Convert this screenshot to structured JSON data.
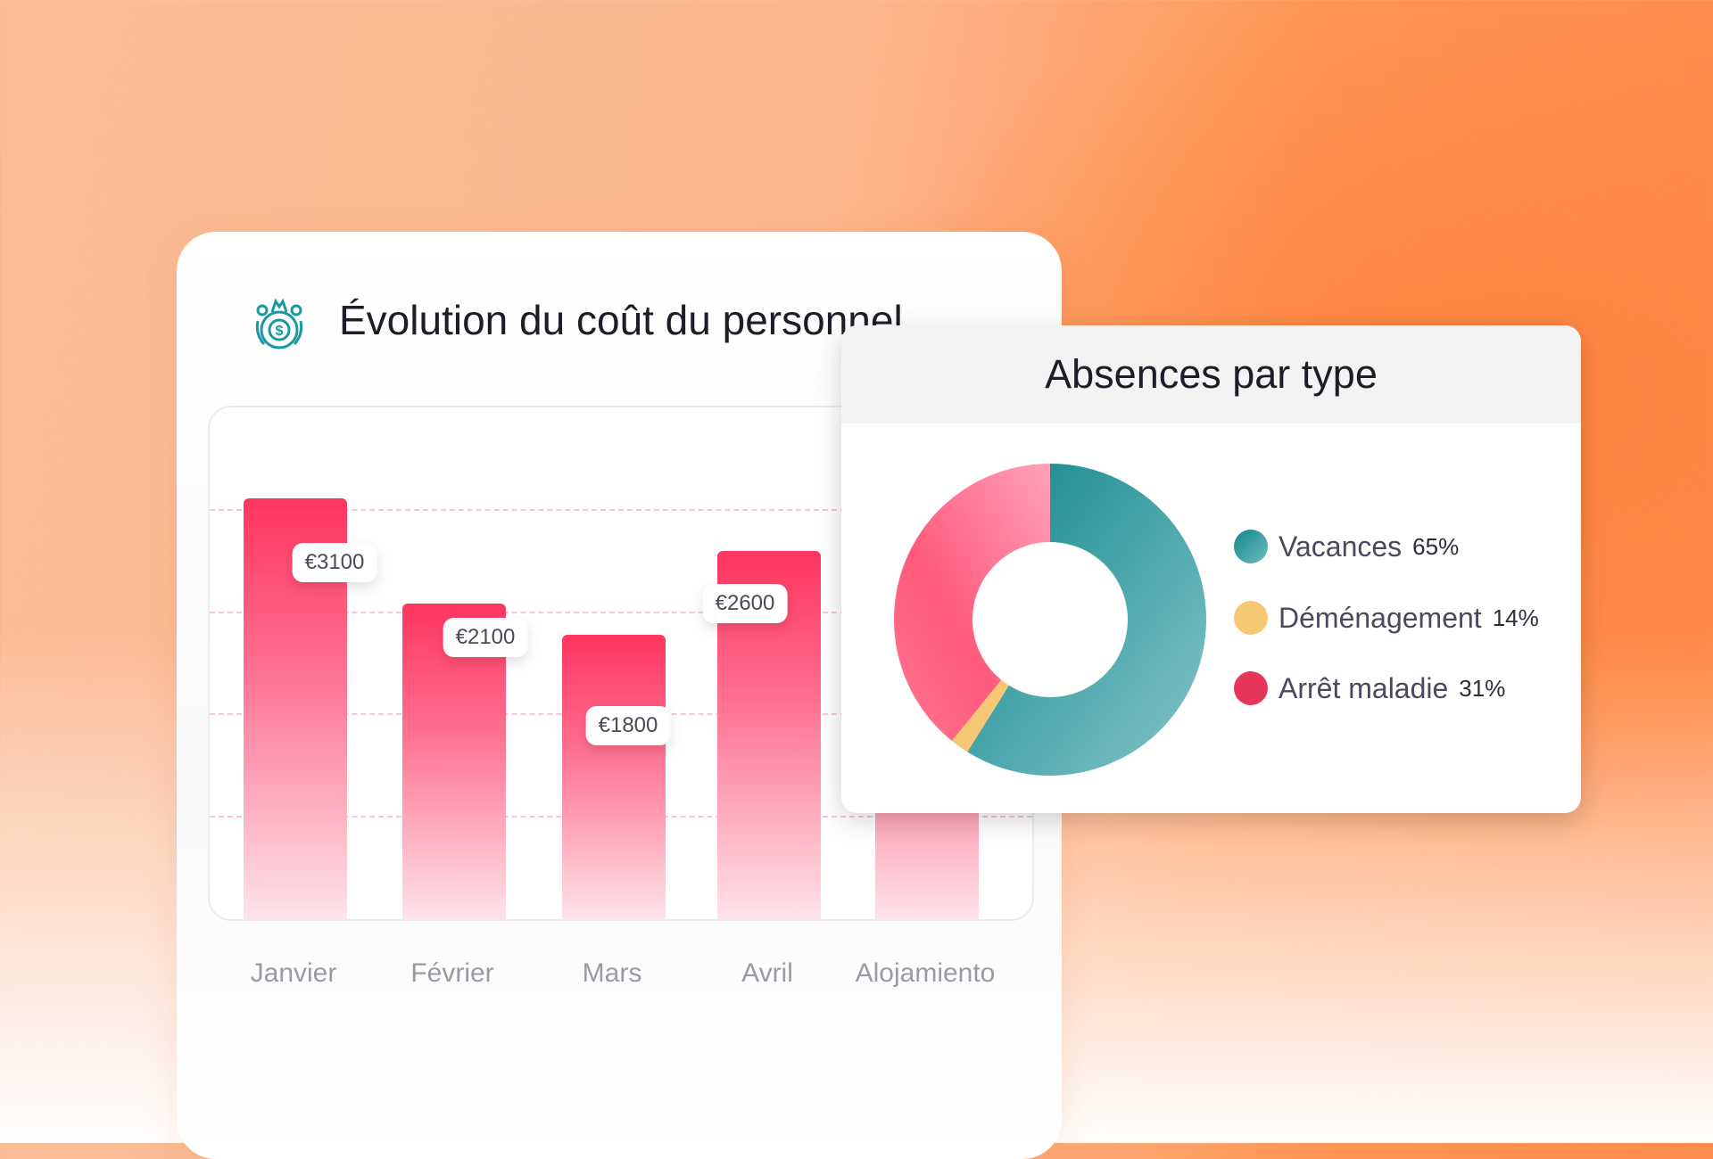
{
  "cost_card": {
    "title": "Évolution du coût du personnel",
    "icon": "money-bag-icon"
  },
  "chart_data": [
    {
      "type": "bar",
      "title": "Évolution du coût du personnel",
      "categories": [
        "Janvier",
        "Février",
        "Mars",
        "Avril",
        "Alojamiento"
      ],
      "values": [
        3100,
        2100,
        1800,
        2600,
        null
      ],
      "labels": [
        "€3100",
        "€2100",
        "€1800",
        "€2600",
        ""
      ],
      "grid": true,
      "bar_color": "#ff3560"
    },
    {
      "type": "pie",
      "title": "Absences par type",
      "legend_position": "right",
      "slices": [
        {
          "label": "Vacances",
          "value": 65,
          "pct_label": "65%",
          "color": "#158a8e"
        },
        {
          "label": "Déménagement",
          "value": 14,
          "pct_label": "14%",
          "color": "#f7c873"
        },
        {
          "label": "Arrêt maladie",
          "value": 31,
          "pct_label": "31%",
          "color": "#e8365a"
        }
      ]
    }
  ]
}
